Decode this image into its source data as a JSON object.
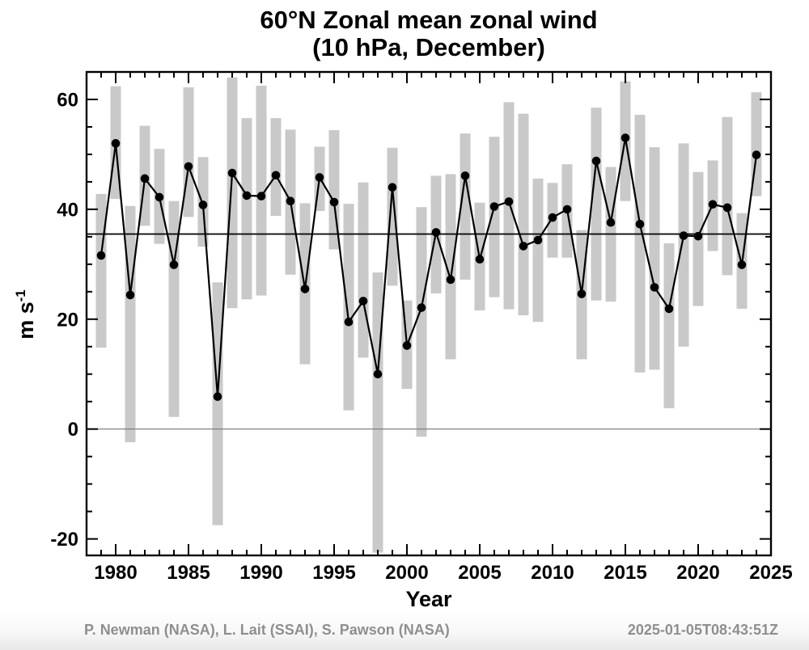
{
  "title": {
    "line1": "60°N Zonal mean zonal wind",
    "line2": "(10 hPa, December)"
  },
  "axes": {
    "x": {
      "label": "Year",
      "min": 1978,
      "max": 2025,
      "major_tick_labels": [
        1980,
        1985,
        1990,
        1995,
        2000,
        2005,
        2010,
        2015,
        2020,
        2025
      ],
      "minor_tick_step": 1
    },
    "y": {
      "label_base": "m s",
      "label_exponent": "-1",
      "min": -23,
      "max": 65,
      "major_tick_labels": [
        -20,
        0,
        20,
        40,
        60
      ],
      "minor_tick_step": 5
    }
  },
  "reference": {
    "record_mean_value": 35.5,
    "zero_line_value": 0
  },
  "colors": {
    "range_bar": "#c9c9c9",
    "series_line": "#000000",
    "data_point": "#000000",
    "record_mean_line": "#000000",
    "zero_line": "#777777",
    "axis_frame": "#000000",
    "footer_text": "#8f8f8f"
  },
  "footer": {
    "credits": "P. Newman (NASA), L. Lait (SSAI), S. Pawson (NASA)",
    "timestamp": "2025-01-05T08:43:51Z"
  },
  "chart_data": {
    "type": "line",
    "description": "December monthly-mean zonal-mean zonal wind at 60N, 10 hPa (dots/line) with daily min-max range bars per December",
    "title": "60°N Zonal mean zonal wind (10 hPa, December)",
    "xlabel": "Year",
    "ylabel": "m s-1",
    "xlim": [
      1978,
      2025
    ],
    "ylim": [
      -23,
      65
    ],
    "grid": false,
    "legend": null,
    "reference_line": 35.5,
    "years": [
      1979,
      1980,
      1981,
      1982,
      1983,
      1984,
      1985,
      1986,
      1987,
      1988,
      1989,
      1990,
      1991,
      1992,
      1993,
      1994,
      1995,
      1996,
      1997,
      1998,
      1999,
      2000,
      2001,
      2002,
      2003,
      2004,
      2005,
      2006,
      2007,
      2008,
      2009,
      2010,
      2011,
      2012,
      2013,
      2014,
      2015,
      2016,
      2017,
      2018,
      2019,
      2020,
      2021,
      2022,
      2023,
      2024
    ],
    "mean_wind": [
      31.6,
      52.0,
      24.4,
      45.6,
      42.2,
      29.9,
      47.8,
      40.8,
      5.9,
      46.6,
      42.5,
      42.4,
      46.2,
      41.5,
      25.5,
      45.8,
      41.3,
      19.5,
      23.3,
      10.0,
      44.0,
      15.2,
      22.1,
      35.8,
      27.2,
      46.1,
      30.9,
      40.5,
      41.4,
      33.3,
      34.4,
      38.5,
      40.0,
      24.6,
      48.8,
      37.6,
      53.0,
      37.3,
      25.8,
      21.9,
      35.2,
      35.1,
      40.9,
      40.3,
      29.9,
      49.9
    ],
    "range_min": [
      14.8,
      41.9,
      -2.4,
      37.0,
      33.7,
      2.2,
      38.6,
      33.2,
      -17.5,
      22.0,
      23.6,
      24.3,
      38.8,
      28.1,
      11.8,
      39.7,
      32.7,
      3.4,
      13.0,
      -22.5,
      26.1,
      7.3,
      -1.4,
      24.7,
      12.7,
      27.2,
      21.6,
      24.0,
      21.8,
      20.7,
      19.5,
      31.2,
      31.2,
      12.7,
      23.4,
      23.2,
      41.5,
      10.3,
      10.8,
      3.8,
      15.0,
      22.4,
      32.4,
      28.0,
      21.9,
      42.4
    ],
    "range_max": [
      42.8,
      62.4,
      40.6,
      55.2,
      51.0,
      41.5,
      62.2,
      49.5,
      26.7,
      64.0,
      56.6,
      62.5,
      56.6,
      54.5,
      41.1,
      51.4,
      54.4,
      41.0,
      44.9,
      28.5,
      51.2,
      23.4,
      40.4,
      46.1,
      46.4,
      53.8,
      41.2,
      53.2,
      59.5,
      57.4,
      45.6,
      44.8,
      48.2,
      36.2,
      58.5,
      47.7,
      63.3,
      57.2,
      51.3,
      33.8,
      52.0,
      46.8,
      48.9,
      56.8,
      39.3,
      61.3
    ]
  }
}
